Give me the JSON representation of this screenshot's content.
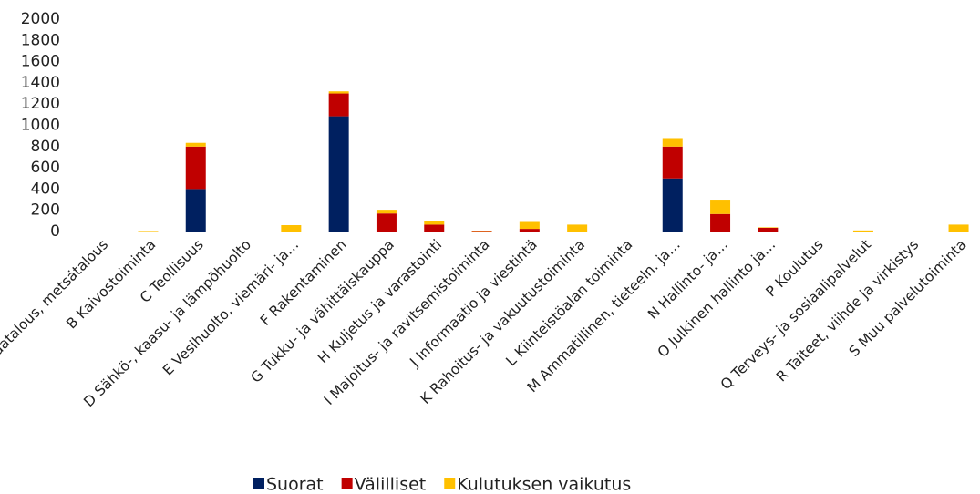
{
  "chart_data": {
    "type": "stacked_bar",
    "categories": [
      "A Maatalous, metsätalous",
      "B Kaivostoiminta",
      "C Teollisuus",
      "D Sähkö-, kaasu- ja lämpöhuolto",
      "E Vesihuolto, viemäri- ja…",
      "F Rakentaminen",
      "G Tukku- ja vähittäiskauppa",
      "H Kuljetus ja varastointi",
      "I Majoitus- ja ravitsemistoiminta",
      "J Informaatio ja viestintä",
      "K Rahoitus- ja vakuutustoiminta",
      "L Kiinteistöalan toiminta",
      "M Ammatillinen, tieteeln. ja…",
      "N Hallinto- ja…",
      "O Julkinen hallinto ja…",
      "P Koulutus",
      "Q Terveys- ja sosiaalipalvelut",
      "R Taiteet, viihde ja virkistys",
      "S Muu palvelutoiminta"
    ],
    "series": [
      {
        "name": "Suorat",
        "color": "#002060",
        "values": [
          0,
          0,
          400,
          0,
          0,
          1085,
          0,
          0,
          0,
          0,
          0,
          0,
          500,
          0,
          0,
          0,
          0,
          0,
          0
        ]
      },
      {
        "name": "Välilliset",
        "color": "#c00000",
        "values": [
          0,
          0,
          400,
          0,
          0,
          215,
          170,
          65,
          5,
          25,
          0,
          0,
          300,
          165,
          35,
          0,
          0,
          0,
          0
        ]
      },
      {
        "name": "Kulutuksen vaikutus",
        "color": "#ffc000",
        "values": [
          0,
          5,
          35,
          0,
          60,
          20,
          35,
          30,
          3,
          65,
          65,
          0,
          80,
          135,
          5,
          0,
          10,
          0,
          65
        ]
      }
    ],
    "ylim": [
      0,
      2000
    ],
    "yticks": [
      0,
      200,
      400,
      600,
      800,
      1000,
      1200,
      1400,
      1600,
      1800,
      2000
    ],
    "legend": "bottom"
  }
}
